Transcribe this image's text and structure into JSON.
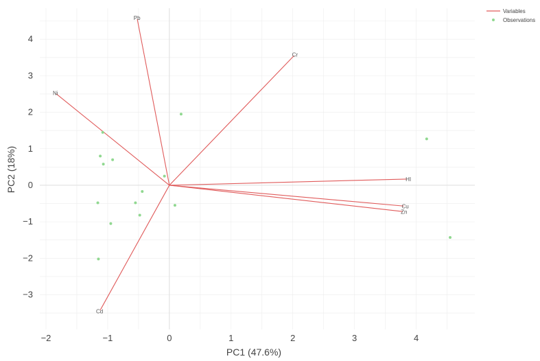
{
  "chart_data": {
    "type": "scatter",
    "subtype": "pca-biplot",
    "title": "",
    "xlabel": "PC1 (47.6%)",
    "ylabel": "PC2 (18%)",
    "xlim": [
      -2.1,
      4.95
    ],
    "ylim": [
      -3.95,
      4.85
    ],
    "xticks": [
      -2,
      -1,
      0,
      1,
      2,
      3,
      4
    ],
    "yticks": [
      -3,
      -2,
      -1,
      0,
      1,
      2,
      3,
      4
    ],
    "grid": true,
    "legend_position": "top-right",
    "colors": {
      "variables": "#e05a5a",
      "observations": "#90d890",
      "grid": "#ececec",
      "zero_line": "#dddddd"
    },
    "series": [
      {
        "name": "Variables",
        "kind": "vectors",
        "points": [
          {
            "label": "Pb",
            "x": -0.52,
            "y": 4.55
          },
          {
            "label": "Cr",
            "x": 2.02,
            "y": 3.55
          },
          {
            "label": "Ni",
            "x": -1.83,
            "y": 2.5
          },
          {
            "label": "HI",
            "x": 3.85,
            "y": 0.17
          },
          {
            "label": "Cu",
            "x": 3.8,
            "y": -0.57
          },
          {
            "label": "Zn",
            "x": 3.78,
            "y": -0.72
          },
          {
            "label": "Cd",
            "x": -1.12,
            "y": -3.42
          }
        ]
      },
      {
        "name": "Observations",
        "kind": "points",
        "points": [
          {
            "x": 0.19,
            "y": 1.95
          },
          {
            "x": -1.08,
            "y": 1.45
          },
          {
            "x": -1.12,
            "y": 0.8
          },
          {
            "x": -0.92,
            "y": 0.7
          },
          {
            "x": -1.07,
            "y": 0.58
          },
          {
            "x": -0.08,
            "y": 0.25
          },
          {
            "x": -0.44,
            "y": -0.17
          },
          {
            "x": -0.55,
            "y": -0.48
          },
          {
            "x": -1.16,
            "y": -0.48
          },
          {
            "x": 0.09,
            "y": -0.55
          },
          {
            "x": -0.48,
            "y": -0.82
          },
          {
            "x": -0.95,
            "y": -1.05
          },
          {
            "x": -1.15,
            "y": -2.02
          },
          {
            "x": 4.17,
            "y": 1.27
          },
          {
            "x": 4.55,
            "y": -1.43
          }
        ]
      }
    ]
  }
}
